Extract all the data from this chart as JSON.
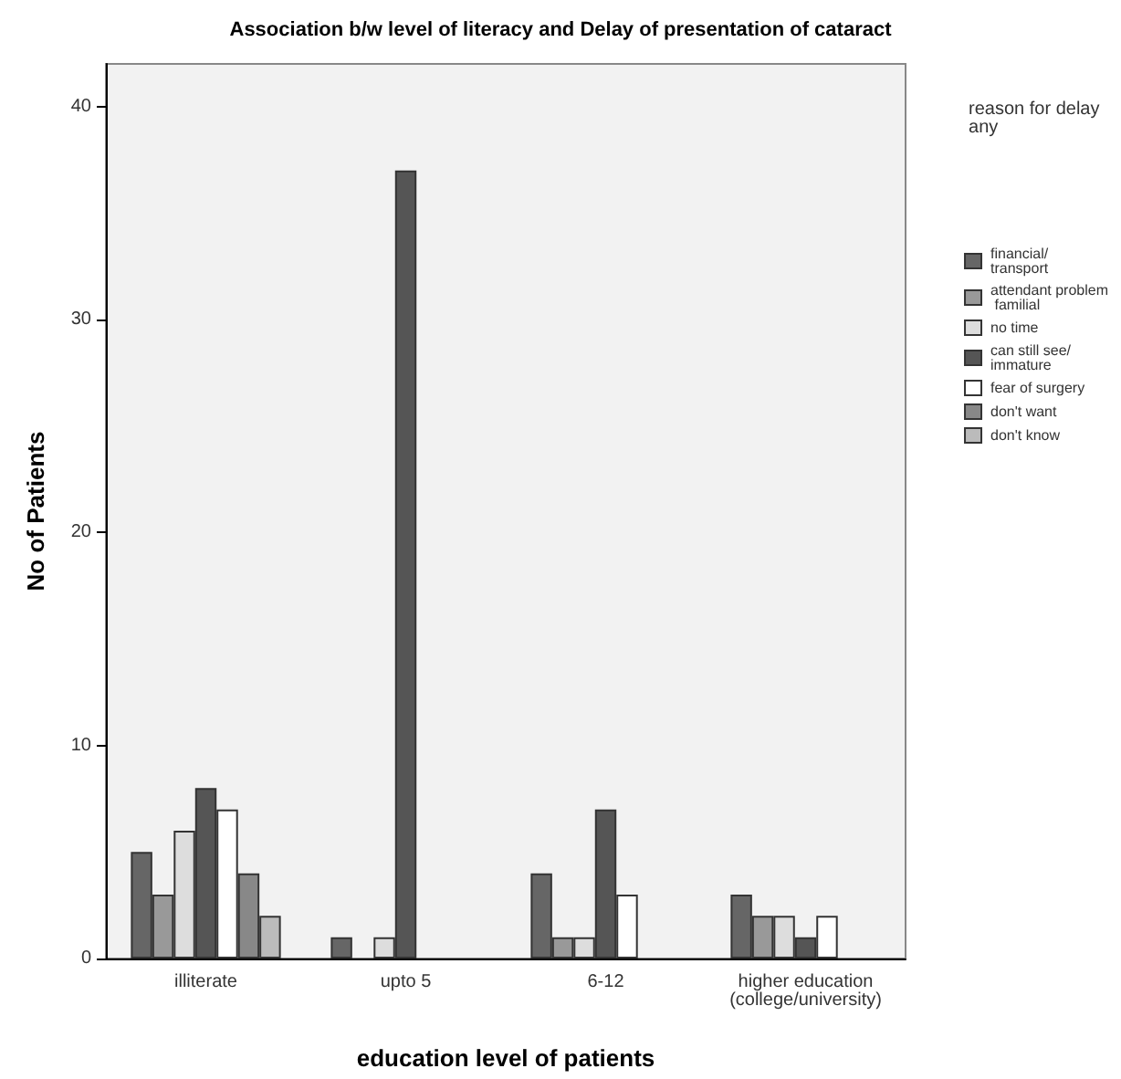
{
  "chart_data": {
    "type": "bar",
    "title": "Association b/w level of literacy and Delay of presentation of cataract",
    "xlabel": "education level of patients",
    "ylabel": "No of Patients",
    "legend_title": "reason for delay any",
    "categories": [
      "illiterate",
      "upto 5",
      "6-12",
      "higher education\n(college/university)"
    ],
    "series": [
      {
        "name": "financial/ transport",
        "color": "#666666",
        "values": [
          5,
          1,
          4,
          3
        ]
      },
      {
        "name": "attendant problem familial",
        "color": "#999999",
        "values": [
          3,
          0,
          1,
          2
        ]
      },
      {
        "name": "no time",
        "color": "#dddddd",
        "values": [
          6,
          1,
          1,
          2
        ]
      },
      {
        "name": "can still see/ immature",
        "color": "#555555",
        "values": [
          8,
          37,
          7,
          1
        ]
      },
      {
        "name": "fear of surgery",
        "color": "#ffffff",
        "values": [
          7,
          0,
          3,
          2
        ]
      },
      {
        "name": "don't want",
        "color": "#888888",
        "values": [
          4,
          0,
          0,
          0
        ]
      },
      {
        "name": "don't know",
        "color": "#bbbbbb",
        "values": [
          2,
          0,
          0,
          0
        ]
      }
    ],
    "ylim": [
      0,
      42
    ],
    "yticks": [
      0,
      10,
      20,
      30,
      40
    ],
    "grid": false,
    "legend": "right"
  }
}
